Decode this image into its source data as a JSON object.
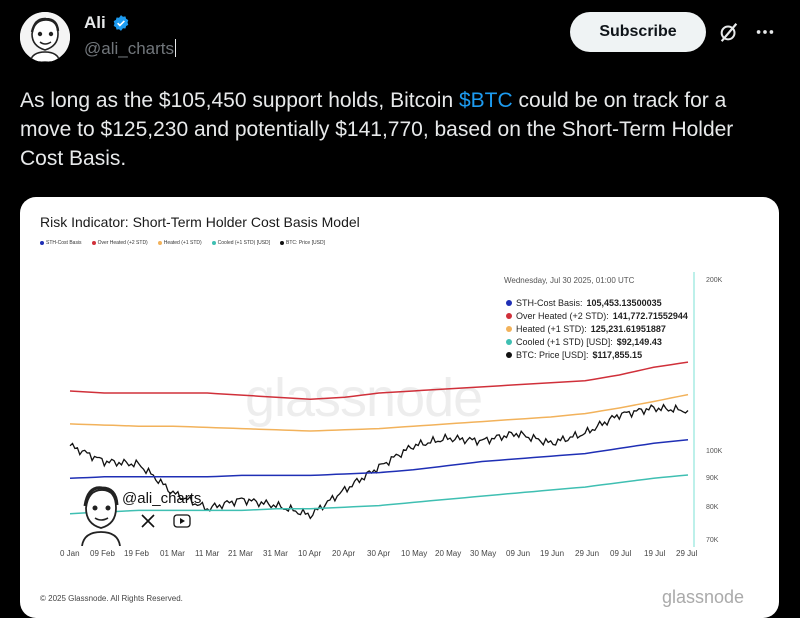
{
  "post": {
    "author_name": "Ali",
    "author_handle": "@ali_charts",
    "subscribe_label": "Subscribe",
    "text_1": "As long as the $105,450 support holds, Bitcoin ",
    "cashtag": "$BTC",
    "text_2": " could be on track for a move to $125,230 and potentially $141,770, based on the Short-Term Holder Cost Basis.",
    "verified_color": "#1d9bf0",
    "icons": [
      "verified-icon",
      "grok-icon",
      "more-icon"
    ]
  },
  "chart": {
    "title": "Risk Indicator: Short-Term Holder Cost Basis Model",
    "legend": [
      {
        "label": "STH-Cost Basis",
        "color": "#1f2fb5"
      },
      {
        "label": "Over Heated (+2 STD)",
        "color": "#d0303a"
      },
      {
        "label": "Heated (+1 STD)",
        "color": "#f2b25b"
      },
      {
        "label": "Cooled (+1 STD) [USD]",
        "color": "#3fbfb2"
      },
      {
        "label": "BTC: Price [USD]",
        "color": "#111111"
      }
    ],
    "tooltip": {
      "date": "Wednesday, Jul 30 2025, 01:00 UTC",
      "rows": [
        {
          "label": "STH-Cost Basis:",
          "value": "105,453.13500035",
          "color": "#1f2fb5"
        },
        {
          "label": "Over Heated (+2 STD):",
          "value": "141,772.71552944",
          "color": "#d0303a"
        },
        {
          "label": "Heated (+1 STD):",
          "value": "125,231.61951887",
          "color": "#f2b25b"
        },
        {
          "label": "Cooled (+1 STD) [USD]:",
          "value": "$92,149.43",
          "color": "#3fbfb2"
        },
        {
          "label": "BTC: Price [USD]:",
          "value": "$117,855.15",
          "color": "#111111"
        }
      ]
    },
    "watermark": "glassnode",
    "overlay_handle": "@ali_charts",
    "copyright": "© 2025 Glassnode. All Rights Reserved.",
    "brand": "glassnode"
  },
  "chart_data": {
    "type": "line",
    "title": "Risk Indicator: Short-Term Holder Cost Basis Model",
    "x_tick_labels": [
      "0 Jan",
      "09 Feb",
      "19 Feb",
      "01 Mar",
      "11 Mar",
      "21 Mar",
      "31 Mar",
      "10 Apr",
      "20 Apr",
      "30 Apr",
      "10 May",
      "20 May",
      "30 May",
      "09 Jun",
      "19 Jun",
      "29 Jun",
      "09 Jul",
      "19 Jul",
      "29 Jul"
    ],
    "y_tick_labels": [
      "200K",
      "100K",
      "90K",
      "80K",
      "70K"
    ],
    "y_scale": "log",
    "ylim": [
      70000,
      200000
    ],
    "x": [
      "2025-01-30",
      "2025-02-09",
      "2025-02-19",
      "2025-03-01",
      "2025-03-11",
      "2025-03-21",
      "2025-03-31",
      "2025-04-10",
      "2025-04-20",
      "2025-04-30",
      "2025-05-10",
      "2025-05-20",
      "2025-05-30",
      "2025-06-09",
      "2025-06-19",
      "2025-06-29",
      "2025-07-09",
      "2025-07-19",
      "2025-07-29"
    ],
    "series": [
      {
        "name": "BTC: Price [USD]",
        "values": [
          103000,
          97000,
          96000,
          86000,
          81000,
          84000,
          82000,
          79000,
          87000,
          95000,
          103000,
          106000,
          105000,
          108000,
          104000,
          108000,
          116000,
          119000,
          117855
        ]
      },
      {
        "name": "Over Heated (+2 STD)",
        "values": [
          127000,
          126000,
          126000,
          126000,
          126000,
          125000,
          124000,
          123000,
          124000,
          126000,
          127000,
          128000,
          129000,
          130000,
          131000,
          132000,
          135000,
          139000,
          141773
        ]
      },
      {
        "name": "Heated (+1 STD)",
        "values": [
          112000,
          111500,
          111000,
          111000,
          110500,
          110000,
          109500,
          109000,
          109500,
          110000,
          111000,
          112000,
          113000,
          114000,
          115000,
          116500,
          119000,
          122000,
          125232
        ]
      },
      {
        "name": "STH-Cost Basis",
        "values": [
          91000,
          91500,
          91500,
          91500,
          91500,
          92000,
          92000,
          92000,
          92500,
          93000,
          94000,
          95500,
          97000,
          98000,
          99000,
          100000,
          102000,
          104000,
          105453
        ]
      },
      {
        "name": "Cooled (+1 STD) [USD]",
        "values": [
          79500,
          80000,
          80500,
          80500,
          80500,
          80500,
          81000,
          81000,
          81500,
          82000,
          83000,
          84000,
          85000,
          86000,
          87000,
          88000,
          89500,
          91000,
          92149
        ]
      }
    ]
  }
}
